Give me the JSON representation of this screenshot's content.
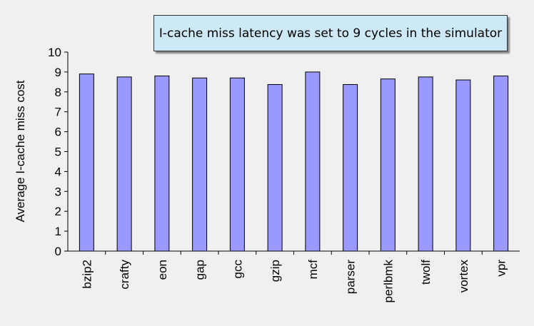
{
  "chart_data": {
    "type": "bar",
    "title": "",
    "annotation": "I-cache miss latency was set to 9 cycles in the simulator",
    "xlabel": "",
    "ylabel": "Average I-cache miss cost",
    "ylim": [
      0,
      10
    ],
    "yticks": [
      "0",
      "1",
      "2",
      "3",
      "4",
      "5",
      "6",
      "7",
      "8",
      "9",
      "10"
    ],
    "categories": [
      "bzip2",
      "crafty",
      "eon",
      "gap",
      "gcc",
      "gzip",
      "mcf",
      "parser",
      "perlbmk",
      "twolf",
      "vortex",
      "vpr"
    ],
    "values": [
      8.9,
      8.75,
      8.8,
      8.7,
      8.7,
      8.37,
      9.0,
      8.37,
      8.65,
      8.75,
      8.6,
      8.8
    ],
    "grid": false,
    "legend": "none",
    "colors": {
      "bar": "#9999ff",
      "bar_stroke": "#000000",
      "background": "#f0f0f0"
    }
  }
}
